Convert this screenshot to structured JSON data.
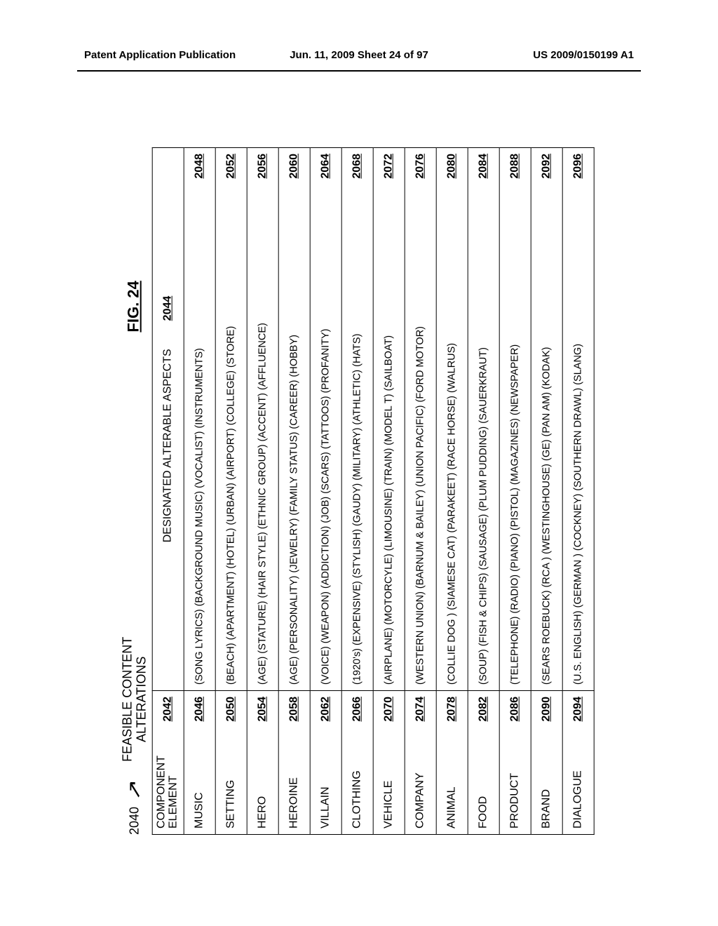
{
  "header": {
    "left": "Patent Application Publication",
    "center": "Jun. 11, 2009  Sheet 24 of 97",
    "right": "US 2009/0150199 A1"
  },
  "figure": {
    "title": "FIG. 24",
    "main_ref": "2040",
    "subtitle_line1": "FEASIBLE CONTENT",
    "subtitle_line2": "ALTERATIONS",
    "col_headers": {
      "element_label_line1": "COMPONENT",
      "element_label_line2": "ELEMENT",
      "element_ref": "2042",
      "aspects_label": "DESIGNATED ALTERABLE ASPECTS",
      "aspects_ref": "2044"
    },
    "rows": [
      {
        "element": "MUSIC",
        "element_ref": "2046",
        "aspects": "(SONG LYRICS) (BACKGROUND MUSIC) (VOCALIST) (INSTRUMENTS)",
        "aspects_ref": "2048"
      },
      {
        "element": "SETTING",
        "element_ref": "2050",
        "aspects": "(BEACH) (APARTMENT) (HOTEL) (URBAN) (AIRPORT) (COLLEGE) (STORE)",
        "aspects_ref": "2052"
      },
      {
        "element": "HERO",
        "element_ref": "2054",
        "aspects": "(AGE) (STATURE) (HAIR STYLE) (ETHNIC GROUP) (ACCENT) (AFFLUENCE)",
        "aspects_ref": "2056"
      },
      {
        "element": "HEROINE",
        "element_ref": "2058",
        "aspects": "(AGE) (PERSONALITY) (JEWELRY) (FAMILY STATUS) (CAREER) (HOBBY)",
        "aspects_ref": "2060"
      },
      {
        "element": "VILLAIN",
        "element_ref": "2062",
        "aspects": "(VOICE) (WEAPON) (ADDICTION) (JOB) (SCARS) (TATTOOS) (PROFANITY)",
        "aspects_ref": "2064"
      },
      {
        "element": "CLOTHING",
        "element_ref": "2066",
        "aspects": "(1920's) (EXPENSIVE) (STYLISH) (GAUDY) (MILITARY) (ATHLETIC) (HATS)",
        "aspects_ref": "2068"
      },
      {
        "element": "VEHICLE",
        "element_ref": "2070",
        "aspects": "(AIRPLANE) (MOTORCYLE) (LIMOUSINE) (TRAIN) (MODEL T) (SAILBOAT)",
        "aspects_ref": "2072"
      },
      {
        "element": "COMPANY",
        "element_ref": "2074",
        "aspects": "(WESTERN UNION) (BARNUM & BAILEY) (UNION PACIFIC) (FORD MOTOR)",
        "aspects_ref": "2076"
      },
      {
        "element": "ANIMAL",
        "element_ref": "2078",
        "aspects": "(COLLIE DOG ) (SIAMESE CAT) (PARAKEET) (RACE HORSE) (WALRUS)",
        "aspects_ref": "2080"
      },
      {
        "element": "FOOD",
        "element_ref": "2082",
        "aspects": "(SOUP)  (FISH & CHIPS) (SAUSAGE) (PLUM PUDDING) (SAUERKRAUT)",
        "aspects_ref": "2084"
      },
      {
        "element": "PRODUCT",
        "element_ref": "2086",
        "aspects": "(TELEPHONE) (RADIO) (PIANO) (PISTOL) (MAGAZINES) (NEWSPAPER)",
        "aspects_ref": "2088"
      },
      {
        "element": "BRAND",
        "element_ref": "2090",
        "aspects": "(SEARS ROEBUCK) (RCA ) (WESTINGHOUSE) (GE) (PAN AM) (KODAK)",
        "aspects_ref": "2092"
      },
      {
        "element": "DIALOGUE",
        "element_ref": "2094",
        "aspects": "(U.S. ENGLISH) (GERMAN ) (COCKNEY) (SOUTHERN DRAWL) (SLANG)",
        "aspects_ref": "2096"
      }
    ]
  }
}
